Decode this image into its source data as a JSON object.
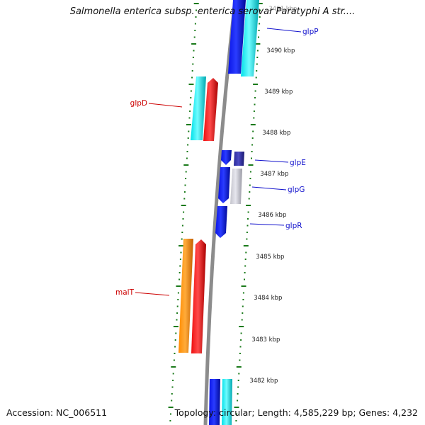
{
  "title": "Salmonella enterica subsp. enterica serovar Paratyphi A str....",
  "accession": "Accession: NC_006511",
  "summary": "Topology: circular; Length: 4,585,229 bp; Genes: 4,232",
  "colors": {
    "forward_blue": "#0a14e6",
    "cyan": "#00e0e8",
    "red": "#ee1010",
    "orange": "#ff8c00",
    "navy": "#2b2a9a",
    "grey": "#c4c4cc",
    "tick_green": "#1a7a1a",
    "backbone": "#8c8c8c",
    "label_blue": "#1010cc",
    "label_red": "#cc0000"
  },
  "scale_ticks": [
    "3491 kbp",
    "3490 kbp",
    "3489 kbp",
    "3488 kbp",
    "3487 kbp",
    "3486 kbp",
    "3485 kbp",
    "3484 kbp",
    "3483 kbp",
    "3482 kbp"
  ],
  "gene_labels": {
    "glpP": "glpP",
    "glpD": "glpD",
    "glpE": "glpE",
    "glpG": "glpG",
    "glpR": "glpR",
    "malT": "malT"
  }
}
